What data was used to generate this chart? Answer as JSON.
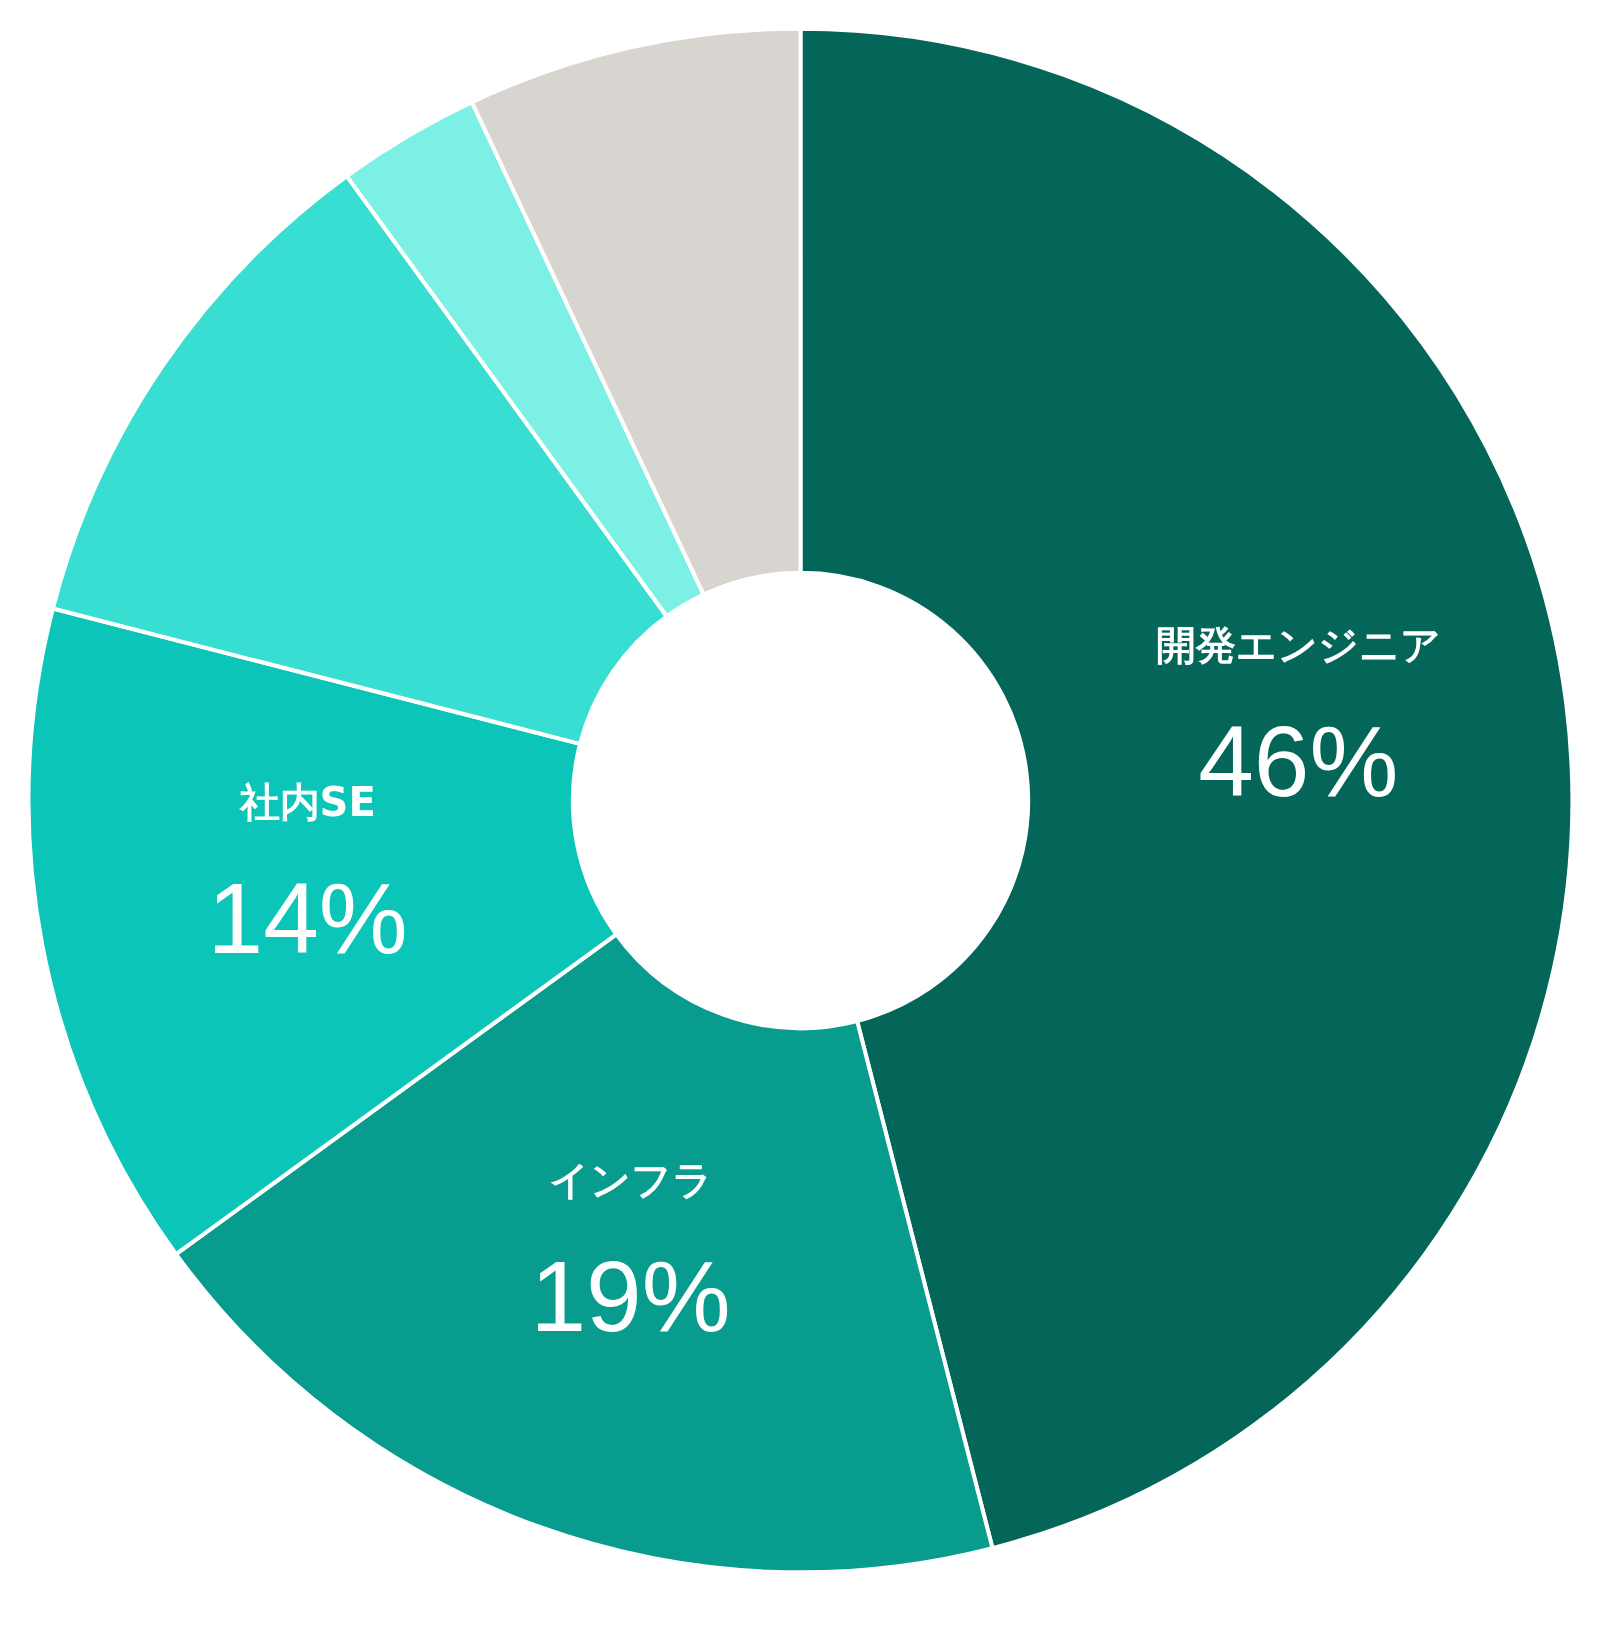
{
  "chart_data": {
    "type": "donut",
    "categories": [
      "開発エンジニア",
      "インフラ",
      "社内SE",
      null,
      null,
      null
    ],
    "values": [
      46,
      19,
      14,
      11,
      3,
      7
    ],
    "colors": [
      "#046559",
      "#089c8f",
      "#0bc5b9",
      "#38ded1",
      "#7df0e6",
      "#d8d5d0"
    ],
    "value_labels": [
      "46%",
      "19%",
      "14%",
      null,
      null,
      null
    ]
  }
}
